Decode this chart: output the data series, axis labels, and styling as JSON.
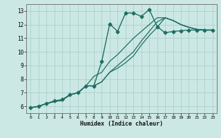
{
  "xlabel": "Humidex (Indice chaleur)",
  "xlim": [
    -0.5,
    23.5
  ],
  "ylim": [
    5.5,
    13.5
  ],
  "yticks": [
    6,
    7,
    8,
    9,
    10,
    11,
    12,
    13
  ],
  "xticks": [
    0,
    1,
    2,
    3,
    4,
    5,
    6,
    7,
    8,
    9,
    10,
    11,
    12,
    13,
    14,
    15,
    16,
    17,
    18,
    19,
    20,
    21,
    22,
    23
  ],
  "bg_color": "#cce8e4",
  "line_color": "#1e6e65",
  "grid_color": "#aacfcc",
  "lines": [
    {
      "x": [
        0,
        1,
        2,
        3,
        4,
        5,
        6,
        7,
        8,
        9,
        10,
        11,
        12,
        13,
        14,
        15,
        16,
        17,
        18,
        19,
        20,
        21,
        22,
        23
      ],
      "y": [
        5.9,
        6.0,
        6.2,
        6.4,
        6.5,
        6.85,
        7.0,
        7.5,
        7.5,
        9.3,
        12.05,
        11.5,
        12.85,
        12.85,
        12.6,
        13.1,
        11.85,
        11.4,
        11.5,
        11.55,
        11.6,
        11.6,
        11.6,
        11.6
      ],
      "marker": "D",
      "markersize": 2.5,
      "linewidth": 1.0
    },
    {
      "x": [
        0,
        1,
        2,
        3,
        4,
        5,
        6,
        7,
        8,
        9,
        10,
        11,
        12,
        13,
        14,
        15,
        16,
        17,
        18,
        19,
        20,
        21,
        22,
        23
      ],
      "y": [
        5.9,
        6.0,
        6.2,
        6.35,
        6.45,
        6.85,
        7.0,
        7.5,
        8.2,
        8.5,
        9.3,
        9.8,
        10.4,
        11.0,
        11.5,
        12.0,
        12.5,
        12.5,
        12.3,
        12.0,
        11.8,
        11.65,
        11.6,
        11.6
      ],
      "marker": null,
      "markersize": 0,
      "linewidth": 0.9
    },
    {
      "x": [
        0,
        1,
        2,
        3,
        4,
        5,
        6,
        7,
        8,
        9,
        10,
        11,
        12,
        13,
        14,
        15,
        16,
        17,
        18,
        19,
        20,
        21,
        22,
        23
      ],
      "y": [
        5.9,
        6.0,
        6.2,
        6.35,
        6.45,
        6.85,
        7.0,
        7.5,
        7.5,
        7.8,
        8.5,
        9.0,
        9.5,
        10.0,
        10.8,
        11.5,
        12.2,
        12.5,
        12.3,
        12.0,
        11.8,
        11.65,
        11.6,
        11.6
      ],
      "marker": null,
      "markersize": 0,
      "linewidth": 0.9
    },
    {
      "x": [
        0,
        1,
        2,
        3,
        4,
        5,
        6,
        7,
        8,
        9,
        10,
        11,
        12,
        13,
        14,
        15,
        16,
        17,
        18,
        19,
        20,
        21,
        22,
        23
      ],
      "y": [
        5.9,
        6.0,
        6.2,
        6.35,
        6.45,
        6.85,
        7.0,
        7.5,
        7.5,
        7.8,
        8.5,
        8.8,
        9.2,
        9.7,
        10.5,
        11.2,
        11.8,
        12.5,
        12.3,
        12.0,
        11.8,
        11.65,
        11.6,
        11.6
      ],
      "marker": null,
      "markersize": 0,
      "linewidth": 0.9
    }
  ]
}
